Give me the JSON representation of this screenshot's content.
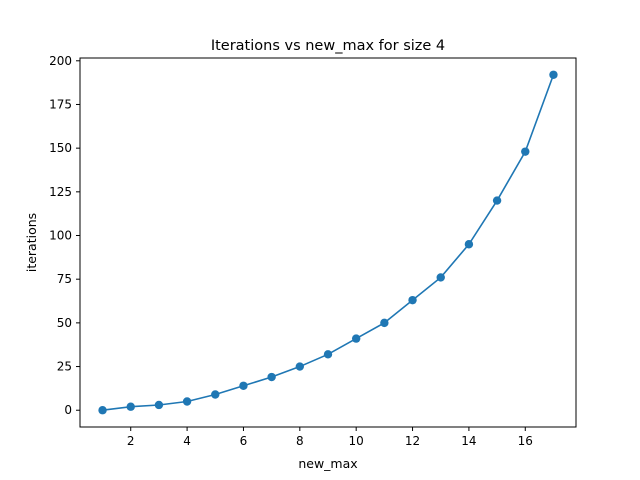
{
  "chart_data": {
    "type": "line",
    "title": "Iterations vs new_max for size 4",
    "xlabel": "new_max",
    "ylabel": "iterations",
    "xlim": [
      0.2,
      17.8
    ],
    "ylim": [
      -9.6,
      201.6
    ],
    "xticks": [
      2,
      4,
      6,
      8,
      10,
      12,
      14,
      16
    ],
    "yticks": [
      0,
      25,
      50,
      75,
      100,
      125,
      150,
      175,
      200
    ],
    "grid": false,
    "legend": "none",
    "color": "#1f77b4",
    "marker": "circle",
    "series": [
      {
        "x": [
          1,
          2,
          3,
          4,
          5,
          6,
          7,
          8,
          9,
          10,
          11,
          12,
          13,
          14,
          15,
          16,
          17
        ],
        "y": [
          0,
          2,
          3,
          5,
          9,
          14,
          19,
          25,
          32,
          41,
          50,
          63,
          76,
          95,
          120,
          148,
          192
        ]
      }
    ]
  }
}
